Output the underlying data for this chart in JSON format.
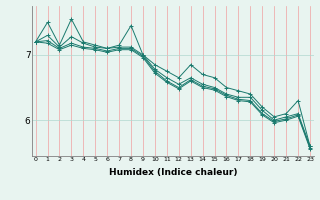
{
  "background_color": "#e8f4f0",
  "grid_color_vertical": "#f0a0a0",
  "grid_color_horizontal": "#b0d8d0",
  "line_color": "#1a7a6e",
  "x_label": "Humidex (Indice chaleur)",
  "x_ticks": [
    0,
    1,
    2,
    3,
    4,
    5,
    6,
    7,
    8,
    9,
    10,
    11,
    12,
    13,
    14,
    15,
    16,
    17,
    18,
    19,
    20,
    21,
    22,
    23
  ],
  "y_ticks": [
    6,
    7
  ],
  "ylim": [
    5.45,
    7.75
  ],
  "xlim": [
    -0.3,
    23.3
  ],
  "series": [
    [
      7.2,
      7.5,
      7.15,
      7.55,
      7.2,
      7.15,
      7.1,
      7.15,
      7.45,
      7.0,
      6.85,
      6.75,
      6.65,
      6.85,
      6.7,
      6.65,
      6.5,
      6.45,
      6.4,
      6.2,
      6.05,
      6.1,
      6.3,
      5.6
    ],
    [
      7.2,
      7.3,
      7.12,
      7.28,
      7.18,
      7.12,
      7.1,
      7.12,
      7.12,
      7.0,
      6.78,
      6.65,
      6.55,
      6.65,
      6.55,
      6.5,
      6.4,
      6.35,
      6.35,
      6.15,
      6.0,
      6.05,
      6.1,
      5.6
    ],
    [
      7.2,
      7.22,
      7.1,
      7.18,
      7.12,
      7.1,
      7.06,
      7.1,
      7.1,
      6.98,
      6.75,
      6.6,
      6.5,
      6.62,
      6.52,
      6.48,
      6.38,
      6.32,
      6.3,
      6.1,
      5.98,
      6.02,
      6.08,
      5.58
    ],
    [
      7.2,
      7.18,
      7.08,
      7.15,
      7.1,
      7.08,
      7.04,
      7.08,
      7.08,
      6.96,
      6.72,
      6.58,
      6.48,
      6.6,
      6.5,
      6.46,
      6.36,
      6.3,
      6.28,
      6.08,
      5.96,
      6.0,
      6.06,
      5.56
    ]
  ]
}
